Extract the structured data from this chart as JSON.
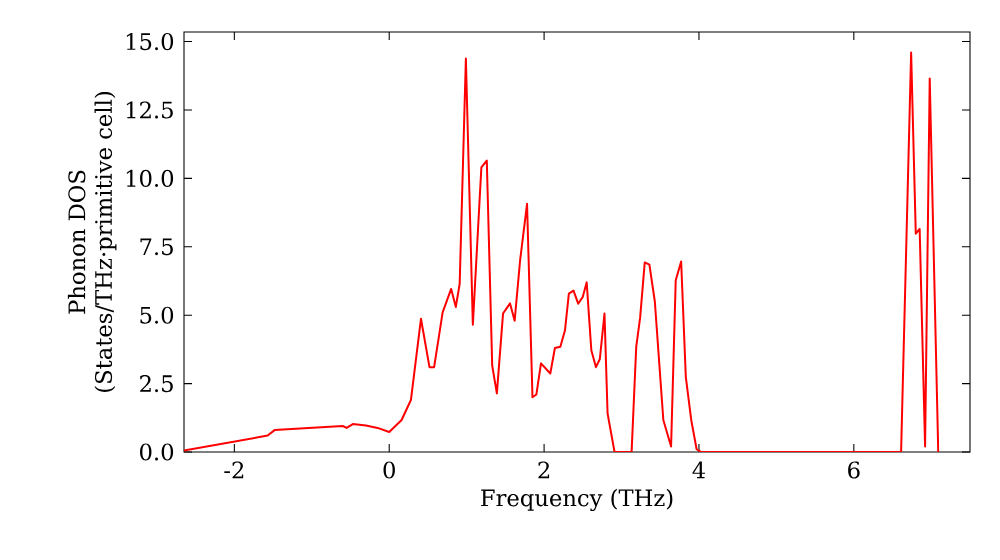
{
  "chart_data": {
    "type": "line",
    "xlabel": "Frequency (THz)",
    "ylabel": "Phonon DOS\n(States/THz·primitive cell)",
    "xlim": [
      -2.65,
      7.5
    ],
    "ylim": [
      0,
      15.35
    ],
    "xticks": [
      -2,
      0,
      2,
      4,
      6
    ],
    "yticks": [
      {
        "value": 0,
        "label": "0.0"
      },
      {
        "value": 2.5,
        "label": "2.5"
      },
      {
        "value": 5,
        "label": "5.0"
      },
      {
        "value": 7.5,
        "label": "7.5"
      },
      {
        "value": 10,
        "label": "10.0"
      },
      {
        "value": 12.5,
        "label": "12.5"
      },
      {
        "value": 15,
        "label": "15.0"
      }
    ],
    "marker": "none",
    "line_style": "solid",
    "series": [
      {
        "color": "#ff0000",
        "x": [
          -2.65,
          -1.57,
          -1.48,
          -0.6,
          -0.55,
          -0.47,
          -0.3,
          -0.15,
          0,
          0.16,
          0.28,
          0.41,
          0.52,
          0.58,
          0.69,
          0.8,
          0.86,
          0.91,
          0.99,
          1.08,
          1.19,
          1.26,
          1.33,
          1.39,
          1.47,
          1.56,
          1.62,
          1.69,
          1.78,
          1.85,
          1.9,
          1.96,
          2.08,
          2.14,
          2.21,
          2.27,
          2.32,
          2.38,
          2.44,
          2.5,
          2.55,
          2.61,
          2.67,
          2.72,
          2.78,
          2.82,
          2.91,
          3.13,
          3.19,
          3.24,
          3.3,
          3.36,
          3.43,
          3.54,
          3.64,
          3.7,
          3.77,
          3.83,
          3.9,
          3.97,
          4.03,
          6.61,
          6.74,
          6.8,
          6.85,
          6.92,
          6.98,
          7.09
        ],
        "values": [
          0.05,
          0.6,
          0.8,
          0.95,
          0.88,
          1.02,
          0.97,
          0.88,
          0.73,
          1.17,
          1.9,
          4.87,
          3.1,
          3.1,
          5.1,
          5.96,
          5.3,
          6.15,
          14.38,
          4.65,
          10.4,
          10.65,
          3.16,
          2.14,
          5.06,
          5.43,
          4.8,
          7.0,
          9.07,
          2.0,
          2.1,
          3.24,
          2.87,
          3.8,
          3.85,
          4.45,
          5.79,
          5.9,
          5.42,
          5.67,
          6.2,
          3.72,
          3.1,
          3.4,
          5.06,
          1.4,
          0,
          0,
          3.85,
          4.9,
          6.93,
          6.85,
          5.5,
          1.17,
          0.2,
          6.28,
          6.96,
          2.75,
          1.17,
          0.1,
          0,
          0,
          14.6,
          7.98,
          8.15,
          0.2,
          13.65,
          0
        ]
      }
    ]
  }
}
